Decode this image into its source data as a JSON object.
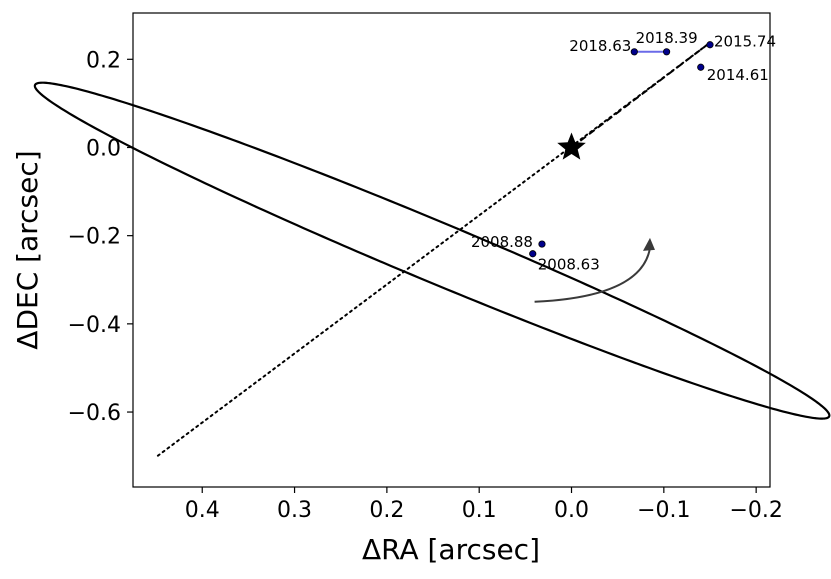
{
  "chart_data": {
    "type": "scatter",
    "title": "",
    "xlabel": "ΔRA [arcsec]",
    "ylabel": "ΔDEC [arcsec]",
    "xlim": [
      0.475,
      -0.215
    ],
    "ylim": [
      -0.77,
      0.305
    ],
    "x_inverted": true,
    "grid": false,
    "legend": "none",
    "xticks": [
      {
        "value": 0.4,
        "label": "0.4"
      },
      {
        "value": 0.3,
        "label": "0.3"
      },
      {
        "value": 0.2,
        "label": "0.2"
      },
      {
        "value": 0.1,
        "label": "0.1"
      },
      {
        "value": 0.0,
        "label": "0.0"
      },
      {
        "value": -0.1,
        "label": "−0.1"
      },
      {
        "value": -0.2,
        "label": "−0.2"
      }
    ],
    "yticks": [
      {
        "value": 0.2,
        "label": "0.2"
      },
      {
        "value": 0.0,
        "label": "0.0"
      },
      {
        "value": -0.2,
        "label": "−0.2"
      },
      {
        "value": -0.4,
        "label": "−0.4"
      },
      {
        "value": -0.6,
        "label": "−0.6"
      }
    ],
    "star": {
      "x": 0.0,
      "y": 0.0
    },
    "orbit": {
      "center": [
        0.151,
        -0.234
      ],
      "semi_major": 0.572,
      "semi_minor": 0.0555,
      "angle_deg": 41.45,
      "color": "#000000"
    },
    "line_of_nodes": {
      "from": [
        0.448,
        -0.699
      ],
      "to": [
        -0.147,
        0.233
      ]
    },
    "periastron_line": {
      "from": [
        0.0,
        0.0
      ],
      "to": [
        -0.147,
        0.233
      ]
    },
    "points": [
      {
        "label": "2008.63",
        "x": 0.042,
        "y": -0.241
      },
      {
        "label": "2008.88",
        "x": 0.032,
        "y": -0.219
      },
      {
        "label": "2014.61",
        "x": -0.14,
        "y": 0.182
      },
      {
        "label": "2015.74",
        "x": -0.15,
        "y": 0.233
      },
      {
        "label": "2018.39",
        "x": -0.103,
        "y": 0.217
      },
      {
        "label": "2018.63",
        "x": -0.068,
        "y": 0.217
      }
    ],
    "residuals": [
      {
        "from": [
          -0.068,
          0.217
        ],
        "to": [
          -0.103,
          0.217
        ],
        "color": "#6a6ae8"
      }
    ],
    "direction_arrow": {
      "from": [
        0.04,
        -0.35
      ],
      "to": [
        -0.085,
        -0.205
      ],
      "color": "#3a3a3a"
    },
    "point_color": "#00008b"
  }
}
